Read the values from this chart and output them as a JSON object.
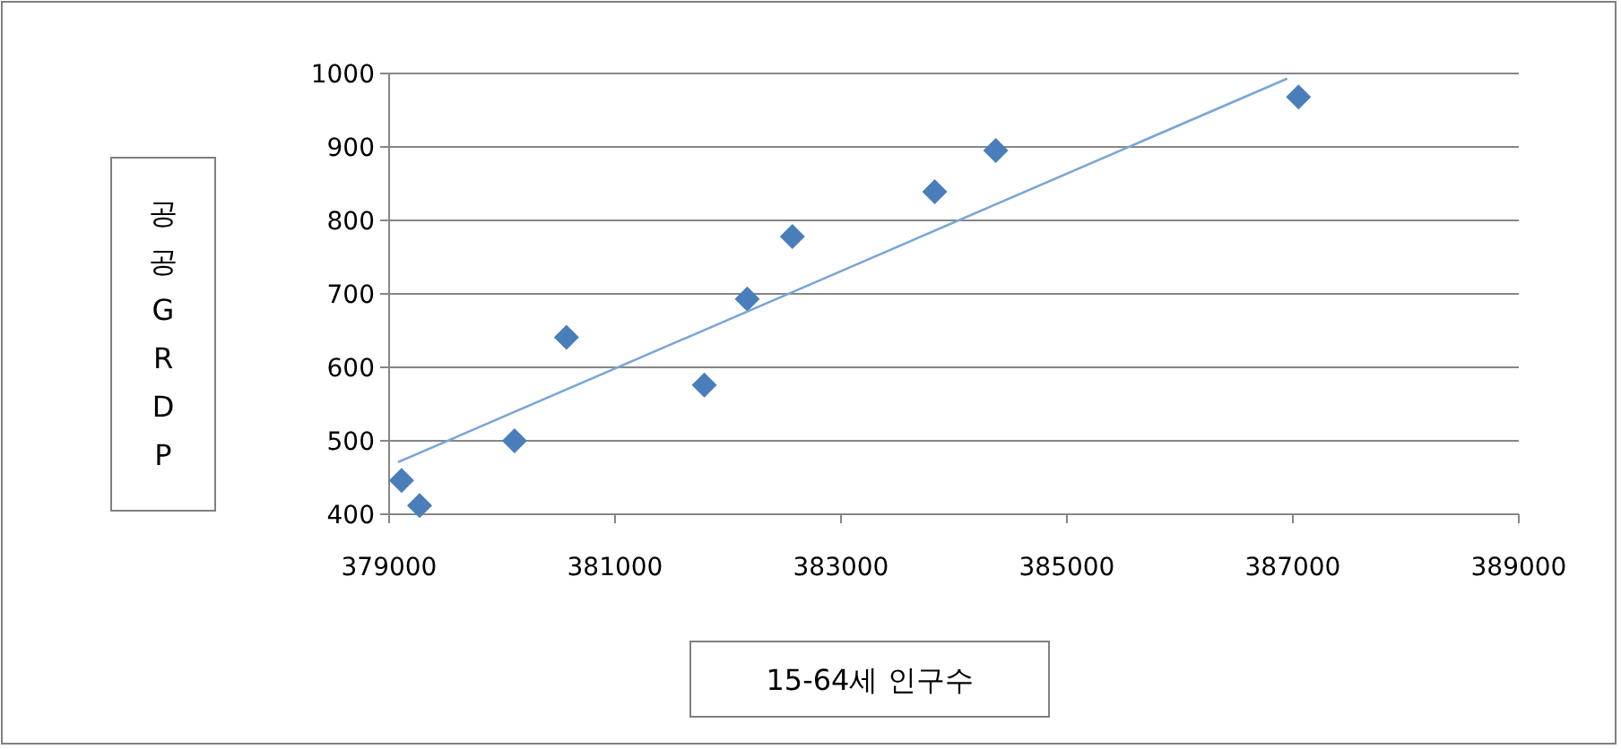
{
  "chart_data": {
    "type": "scatter",
    "xlabel": "15-64세 인구수",
    "ylabel": "공공GRDP",
    "xlim": [
      379000,
      389000
    ],
    "xticks": [
      379000,
      381000,
      383000,
      385000,
      387000,
      389000
    ],
    "ylim": [
      400,
      1000
    ],
    "yticks": [
      400,
      500,
      600,
      700,
      800,
      900,
      1000
    ],
    "grid": "y",
    "series": [
      {
        "marker": "diamond",
        "color": "#4a7ebb",
        "x": [
          379110,
          379270,
          380110,
          380570,
          381790,
          382170,
          382570,
          383830,
          384370,
          387050
        ],
        "values": [
          446,
          412,
          500,
          641,
          576,
          693,
          778,
          839,
          895,
          968
        ]
      },
      {
        "type": "line",
        "marker": "none",
        "color": "#7aa6d6",
        "x": [
          379080,
          386950
        ],
        "values": [
          471,
          993
        ]
      }
    ]
  }
}
